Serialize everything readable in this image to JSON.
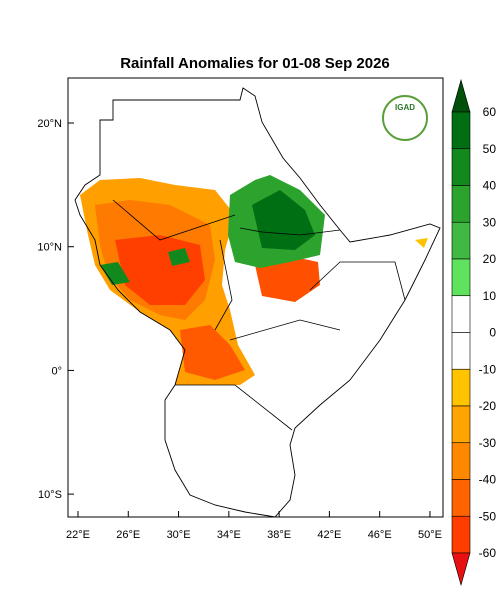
{
  "title": "Rainfall Anomalies for 01-08 Sep 2026",
  "logo": "IGAD",
  "lat_ticks": [
    {
      "value": 20,
      "label": "20°N"
    },
    {
      "value": 10,
      "label": "10°N"
    },
    {
      "value": 0,
      "label": "0°"
    },
    {
      "value": -10,
      "label": "10°S"
    }
  ],
  "lon_ticks": [
    {
      "value": 22,
      "label": "22°E"
    },
    {
      "value": 26,
      "label": "26°E"
    },
    {
      "value": 30,
      "label": "30°E"
    },
    {
      "value": 34,
      "label": "34°E"
    },
    {
      "value": 38,
      "label": "38°E"
    },
    {
      "value": 42,
      "label": "42°E"
    },
    {
      "value": 46,
      "label": "46°E"
    },
    {
      "value": 50,
      "label": "50°E"
    }
  ],
  "colorbar": {
    "labels": [
      60,
      50,
      40,
      30,
      20,
      10,
      0,
      -10,
      -20,
      -30,
      -40,
      -50,
      -60
    ],
    "colors": [
      "#00500a",
      "#006e12",
      "#13881d",
      "#2ba32d",
      "#42b844",
      "#5fe35f",
      "#ffffff",
      "#ffffff",
      "#ffc300",
      "#ffa400",
      "#ff8800",
      "#ff6400",
      "#ff3d00",
      "#e81010"
    ]
  }
}
